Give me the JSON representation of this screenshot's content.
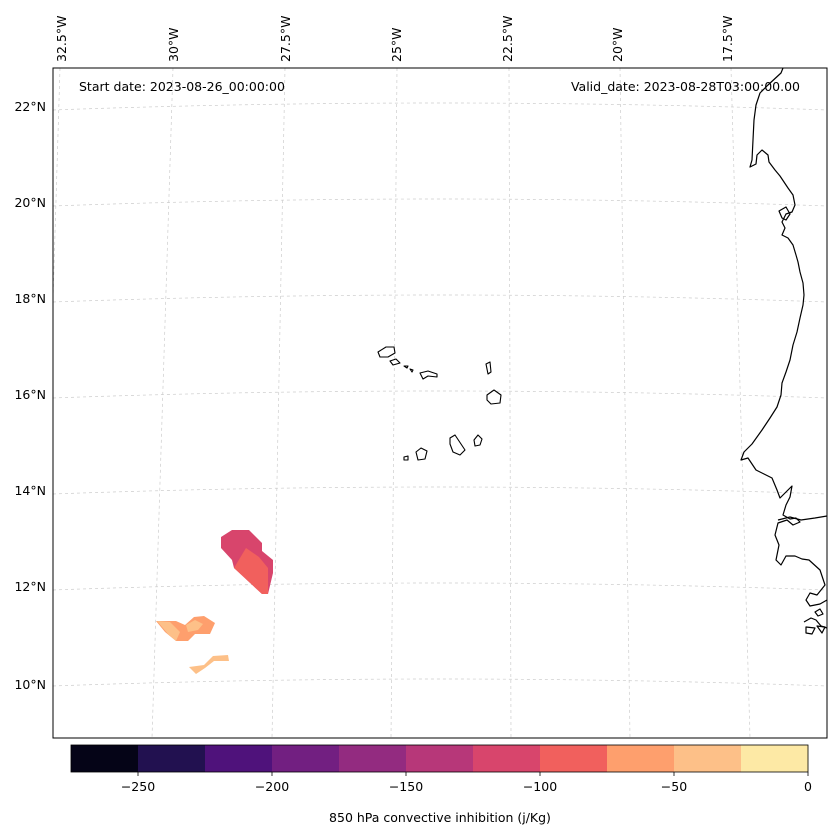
{
  "annotations": {
    "start_date": "Start date: 2023-08-26_00:00:00",
    "valid_date": "Valid_date: 2023-08-28T03:00:00.00"
  },
  "longitude_labels": [
    "32.5°W",
    "30°W",
    "27.5°W",
    "25°W",
    "22.5°W",
    "20°W",
    "17.5°W"
  ],
  "latitude_labels": [
    "22°N",
    "20°N",
    "18°N",
    "16°N",
    "14°N",
    "12°N",
    "10°N"
  ],
  "colorbar": {
    "label": "850 hPa convective inhibition (j/Kg)",
    "tick_labels": [
      "−250",
      "−200",
      "−150",
      "−100",
      "−50",
      "0"
    ],
    "range": [
      -275,
      0
    ],
    "colors": [
      "#050417",
      "#221150",
      "#4f127b",
      "#721f81",
      "#932b80",
      "#b73779",
      "#d8456c",
      "#f1605d",
      "#fe9f6d",
      "#fdc088",
      "#fde9a5"
    ]
  },
  "colors": {
    "grid": "#cccccc",
    "coastline": "#000000"
  }
}
